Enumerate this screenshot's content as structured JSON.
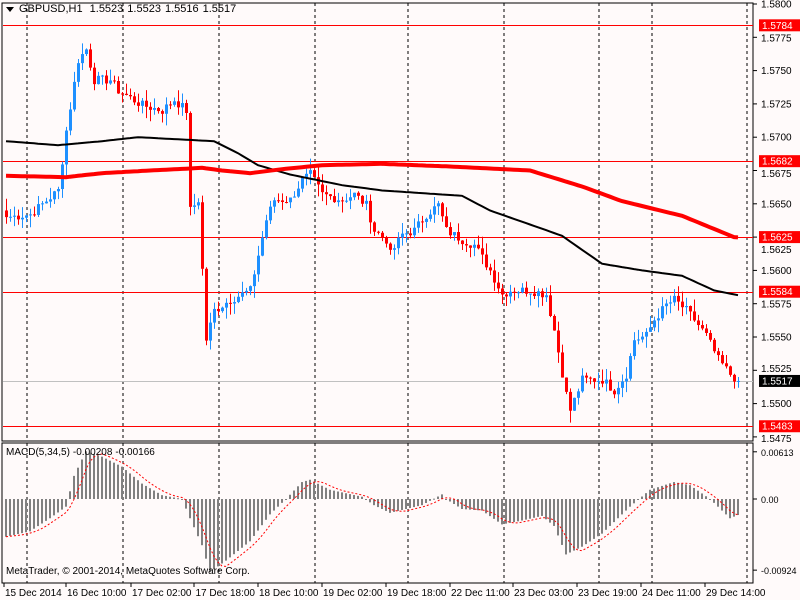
{
  "header": {
    "symbol": "GBPUSD,H1",
    "open": "1.5523",
    "high": "1.5523",
    "low": "1.5516",
    "close": "1.5517"
  },
  "macd_label": {
    "name": "MACD(5,34,5)",
    "main": "-0.00208",
    "signal": "-0.00166"
  },
  "copyright": "MetaTrader, © 2001-2014, MetaQuotes Software Corp.",
  "colors": {
    "background": "#fffafa",
    "bull": "#1e90ff",
    "bear": "#ff0000",
    "level": "#ff0000",
    "ma_fast": "#000000",
    "ma_slow": "#ff0000",
    "histogram": "#808080",
    "signal": "#ff0000"
  },
  "chart_data": {
    "type": "candlestick",
    "title": "GBPUSD,H1",
    "bars": 184,
    "ylim": [
      1.547,
      1.5803
    ],
    "y_ticks": [
      "1.5800",
      "1.5775",
      "1.5750",
      "1.5725",
      "1.5700",
      "1.5675",
      "1.5650",
      "1.5625",
      "1.5600",
      "1.5575",
      "1.5550",
      "1.5525",
      "1.5500",
      "1.5475"
    ],
    "x_ticks": [
      "15 Dec 2014",
      "16 Dec 10:00",
      "17 Dec 02:00",
      "17 Dec 18:00",
      "18 Dec 10:00",
      "19 Dec 02:00",
      "19 Dec 18:00",
      "22 Dec 11:00",
      "23 Dec 03:00",
      "23 Dec 19:00",
      "24 Dec 11:00",
      "29 Dec 14:00"
    ],
    "close_anchors": [
      [
        0,
        1.564
      ],
      [
        6,
        1.5642
      ],
      [
        13,
        1.566
      ],
      [
        15,
        1.5705
      ],
      [
        18,
        1.5758
      ],
      [
        20,
        1.5766
      ],
      [
        22,
        1.5743
      ],
      [
        26,
        1.5743
      ],
      [
        28,
        1.5735
      ],
      [
        34,
        1.5724
      ],
      [
        39,
        1.572
      ],
      [
        42,
        1.5728
      ],
      [
        45,
        1.572
      ],
      [
        46,
        1.5645
      ],
      [
        48,
        1.5653
      ],
      [
        50,
        1.5548
      ],
      [
        52,
        1.557
      ],
      [
        56,
        1.5578
      ],
      [
        61,
        1.5585
      ],
      [
        65,
        1.5638
      ],
      [
        67,
        1.5653
      ],
      [
        71,
        1.5653
      ],
      [
        74,
        1.5668
      ],
      [
        76,
        1.5672
      ],
      [
        79,
        1.5657
      ],
      [
        84,
        1.5653
      ],
      [
        87,
        1.5657
      ],
      [
        90,
        1.5649
      ],
      [
        92,
        1.563
      ],
      [
        95,
        1.5623
      ],
      [
        96,
        1.5612
      ],
      [
        99,
        1.5627
      ],
      [
        102,
        1.563
      ],
      [
        105,
        1.5642
      ],
      [
        108,
        1.5649
      ],
      [
        110,
        1.563
      ],
      [
        114,
        1.5623
      ],
      [
        117,
        1.5619
      ],
      [
        121,
        1.56
      ],
      [
        124,
        1.5582
      ],
      [
        126,
        1.5585
      ],
      [
        131,
        1.5585
      ],
      [
        135,
        1.5582
      ],
      [
        137,
        1.5555
      ],
      [
        140,
        1.5507
      ],
      [
        141,
        1.5495
      ],
      [
        144,
        1.5518
      ],
      [
        149,
        1.5518
      ],
      [
        152,
        1.551
      ],
      [
        155,
        1.5522
      ],
      [
        157,
        1.5548
      ],
      [
        160,
        1.5551
      ],
      [
        162,
        1.5563
      ],
      [
        165,
        1.5574
      ],
      [
        167,
        1.5578
      ],
      [
        170,
        1.557
      ],
      [
        172,
        1.5563
      ],
      [
        175,
        1.5551
      ],
      [
        178,
        1.5533
      ],
      [
        181,
        1.5522
      ],
      [
        183,
        1.5517
      ]
    ],
    "levels": [
      1.5784,
      1.5682,
      1.5625,
      1.5584,
      1.5483
    ],
    "current_price": 1.5517,
    "ma_fast_anchors": [
      [
        0,
        1.5697
      ],
      [
        13,
        1.5694
      ],
      [
        24,
        1.5697
      ],
      [
        33,
        1.57
      ],
      [
        52,
        1.5697
      ],
      [
        58,
        1.5688
      ],
      [
        63,
        1.5679
      ],
      [
        71,
        1.5672
      ],
      [
        84,
        1.5664
      ],
      [
        94,
        1.566
      ],
      [
        104,
        1.5658
      ],
      [
        114,
        1.5656
      ],
      [
        121,
        1.5645
      ],
      [
        139,
        1.5626
      ],
      [
        149,
        1.5605
      ],
      [
        159,
        1.56
      ],
      [
        169,
        1.5596
      ],
      [
        177,
        1.5585
      ],
      [
        182,
        1.5582
      ]
    ],
    "ma_slow_anchors": [
      [
        0,
        1.5671
      ],
      [
        15,
        1.567
      ],
      [
        24,
        1.5673
      ],
      [
        36,
        1.5675
      ],
      [
        49,
        1.5677
      ],
      [
        54,
        1.5675
      ],
      [
        61,
        1.5673
      ],
      [
        69,
        1.5676
      ],
      [
        79,
        1.5679
      ],
      [
        94,
        1.568
      ],
      [
        111,
        1.5678
      ],
      [
        131,
        1.5675
      ],
      [
        144,
        1.5663
      ],
      [
        154,
        1.5652
      ],
      [
        169,
        1.5641
      ],
      [
        182,
        1.5625
      ]
    ],
    "macd": {
      "ylim": [
        -0.00924,
        0.00613
      ],
      "y_ticks": [
        "0.00613",
        "0.00",
        "-0.00924"
      ],
      "hist_anchors": [
        [
          0,
          -0.0049
        ],
        [
          6,
          -0.0042
        ],
        [
          11,
          -0.0025
        ],
        [
          15,
          -0.001
        ],
        [
          17,
          0.003
        ],
        [
          20,
          0.0062
        ],
        [
          24,
          0.0055
        ],
        [
          29,
          0.0042
        ],
        [
          34,
          0.002
        ],
        [
          39,
          0.0005
        ],
        [
          44,
          0.0
        ],
        [
          46,
          -0.0025
        ],
        [
          49,
          -0.006
        ],
        [
          51,
          -0.0095
        ],
        [
          55,
          -0.008
        ],
        [
          61,
          -0.0055
        ],
        [
          66,
          -0.002
        ],
        [
          70,
          0.0
        ],
        [
          74,
          0.0022
        ],
        [
          76,
          0.0025
        ],
        [
          81,
          0.0012
        ],
        [
          89,
          0.0003
        ],
        [
          92,
          -0.0008
        ],
        [
          96,
          -0.0018
        ],
        [
          104,
          -0.0008
        ],
        [
          109,
          0.0006
        ],
        [
          110,
          0.0
        ],
        [
          114,
          -0.0013
        ],
        [
          119,
          -0.0015
        ],
        [
          124,
          -0.0033
        ],
        [
          129,
          -0.0028
        ],
        [
          134,
          -0.0022
        ],
        [
          137,
          -0.0035
        ],
        [
          140,
          -0.0072
        ],
        [
          144,
          -0.0062
        ],
        [
          149,
          -0.0045
        ],
        [
          156,
          -0.001
        ],
        [
          161,
          0.0012
        ],
        [
          167,
          0.0022
        ],
        [
          171,
          0.0018
        ],
        [
          176,
          0.0
        ],
        [
          181,
          -0.0025
        ],
        [
          183,
          -0.00208
        ]
      ],
      "signal_last": -0.00166
    }
  }
}
